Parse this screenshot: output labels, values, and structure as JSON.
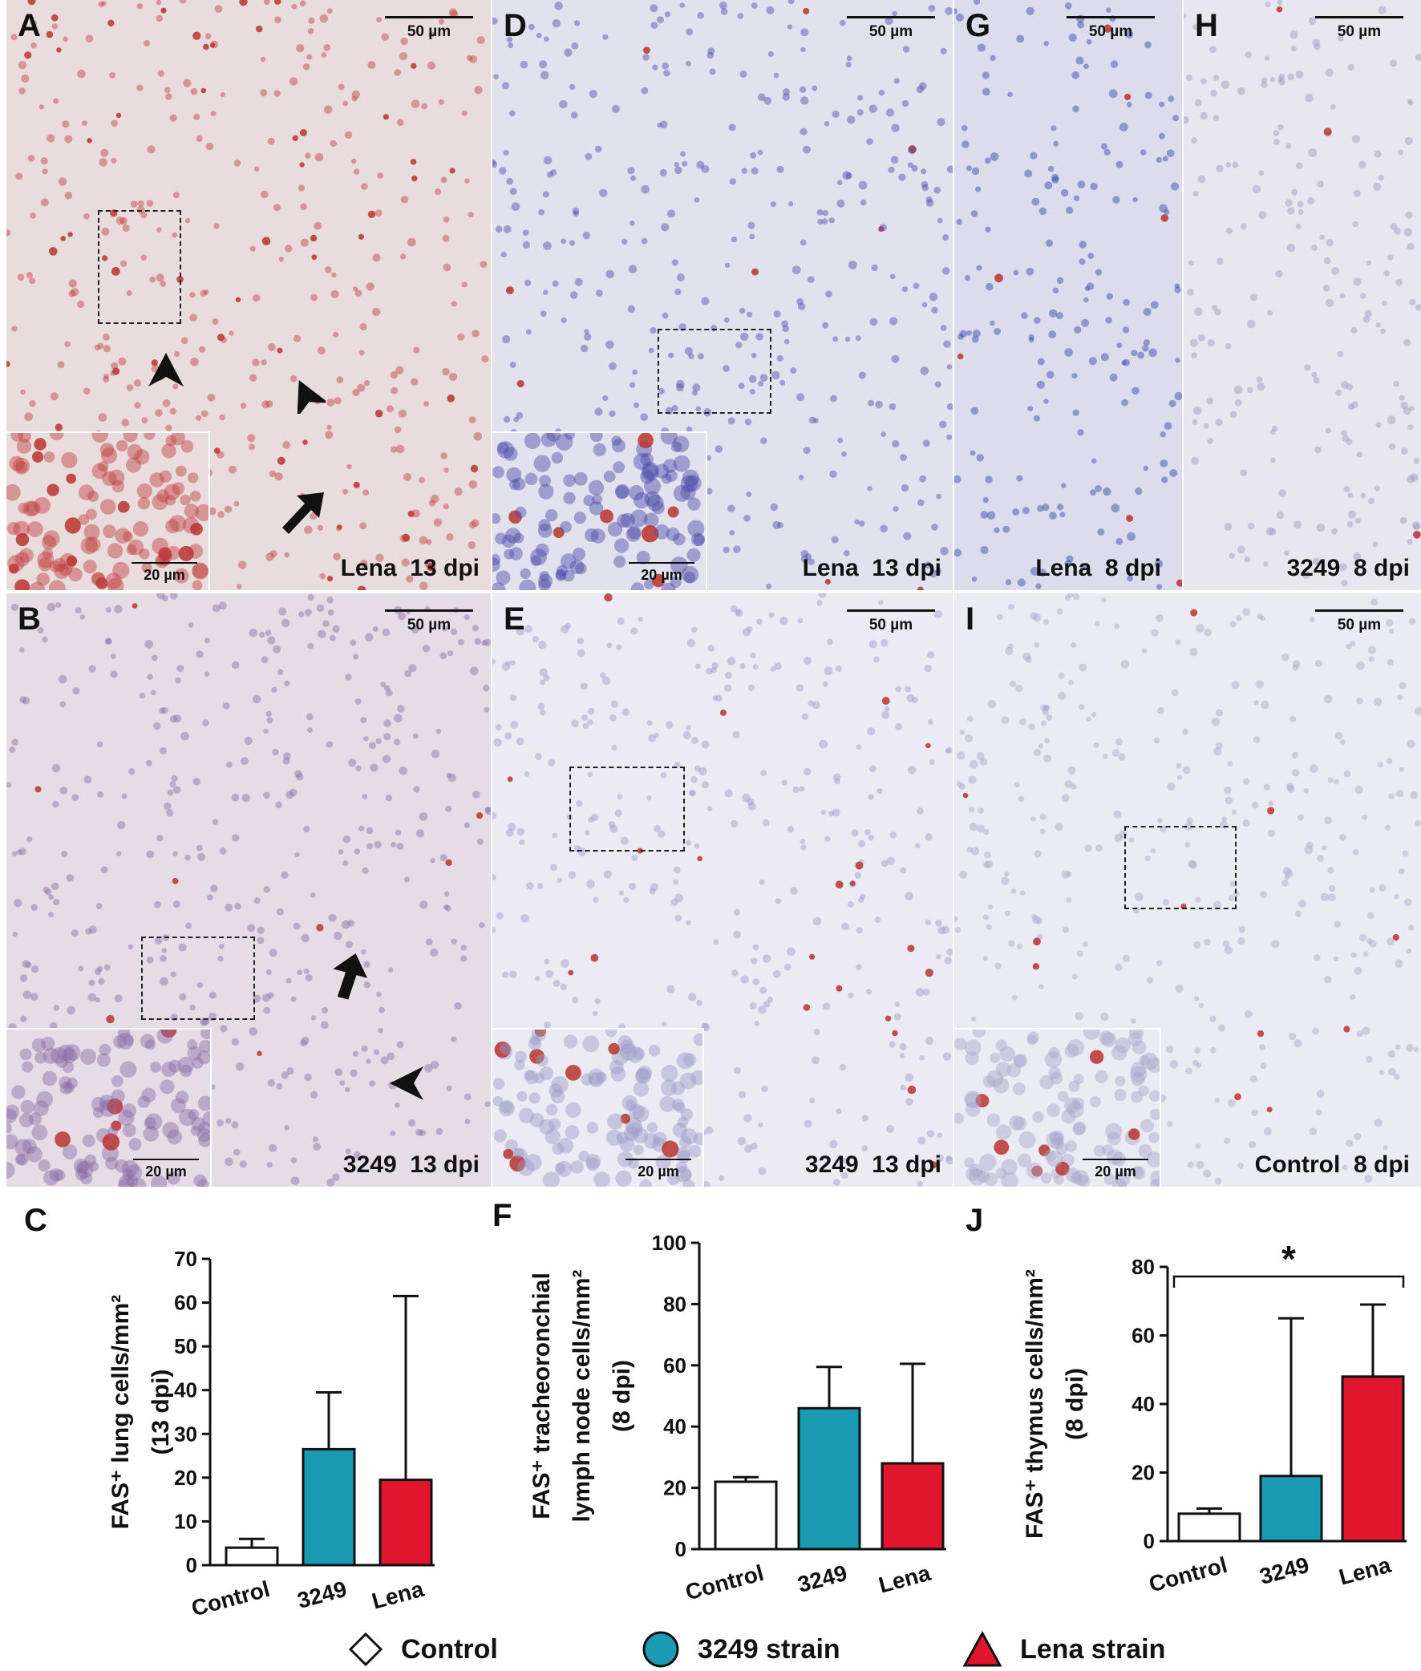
{
  "panels": [
    {
      "id": "A",
      "label": "A",
      "caption": "Lena  13 dpi",
      "scale": "50 µm",
      "inset_scale": "20 µm",
      "tint": "#e9dcdc",
      "dot": "#c23b3b"
    },
    {
      "id": "D",
      "label": "D",
      "caption": "Lena  13 dpi",
      "scale": "50 µm",
      "inset_scale": "20 µm",
      "tint": "#e2e2ef",
      "dot": "#4a4aa8"
    },
    {
      "id": "G",
      "label": "G",
      "caption": "Lena  8 dpi",
      "scale": "50 µm",
      "tint": "#dcdcec",
      "dot": "#2a44a8"
    },
    {
      "id": "H",
      "label": "H",
      "caption": "3249  8 dpi",
      "scale": "50 µm",
      "tint": "#e8e6ee",
      "dot": "#9a98c4"
    },
    {
      "id": "B",
      "label": "B",
      "caption": "3249  13 dpi",
      "scale": "50 µm",
      "inset_scale": "20 µm",
      "tint": "#e6dce6",
      "dot": "#8a6aa6"
    },
    {
      "id": "E",
      "label": "E",
      "caption": "3249  13 dpi",
      "scale": "50 µm",
      "inset_scale": "20 µm",
      "tint": "#ecebf4",
      "dot": "#9898c8"
    },
    {
      "id": "I",
      "label": "I",
      "caption": "Control  8 dpi",
      "scale": "50 µm",
      "inset_scale": "20 µm",
      "tint": "#ebebf3",
      "dot": "#a6a6cc"
    }
  ],
  "chart_data": [
    {
      "panel": "C",
      "type": "bar",
      "ylabel_lines": [
        "FAS⁺ lung cells/mm²",
        "(13 dpi)"
      ],
      "categories": [
        "Control",
        "3249",
        "Lena"
      ],
      "values": [
        4,
        26.5,
        19.5
      ],
      "errors": [
        6,
        39.5,
        61.5
      ],
      "ylim": [
        0,
        70
      ],
      "yticks": [
        0,
        10,
        20,
        30,
        40,
        50,
        60,
        70
      ],
      "colors": [
        "#ffffff",
        "#1a9bb3",
        "#e0162e"
      ]
    },
    {
      "panel": "F",
      "type": "bar",
      "ylabel_lines": [
        "FAS⁺ tracheoronchial",
        "lymph node cells/mm²",
        "(8 dpi)"
      ],
      "categories": [
        "Control",
        "3249",
        "Lena"
      ],
      "values": [
        22,
        46,
        28
      ],
      "errors": [
        23.5,
        59.5,
        60.5
      ],
      "ylim": [
        0,
        100
      ],
      "yticks": [
        0,
        20,
        40,
        60,
        80,
        100
      ],
      "colors": [
        "#ffffff",
        "#1a9bb3",
        "#e0162e"
      ]
    },
    {
      "panel": "J",
      "type": "bar",
      "ylabel_lines": [
        "FAS⁺ thymus cells/mm²",
        "(8 dpi)"
      ],
      "categories": [
        "Control",
        "3249",
        "Lena"
      ],
      "values": [
        8,
        19,
        48
      ],
      "errors": [
        9.5,
        65,
        69
      ],
      "ylim": [
        0,
        80
      ],
      "yticks": [
        0,
        20,
        40,
        60,
        80
      ],
      "colors": [
        "#ffffff",
        "#1a9bb3",
        "#e0162e"
      ],
      "significance": "*"
    }
  ],
  "chart_labels": {
    "C": "C",
    "F": "F",
    "J": "J"
  },
  "legend": [
    {
      "label": "Control",
      "shape": "diamond",
      "color": "#ffffff"
    },
    {
      "label": "3249 strain",
      "shape": "circle",
      "color": "#1a9bb3"
    },
    {
      "label": "Lena strain",
      "shape": "triangle",
      "color": "#e0162e"
    }
  ]
}
